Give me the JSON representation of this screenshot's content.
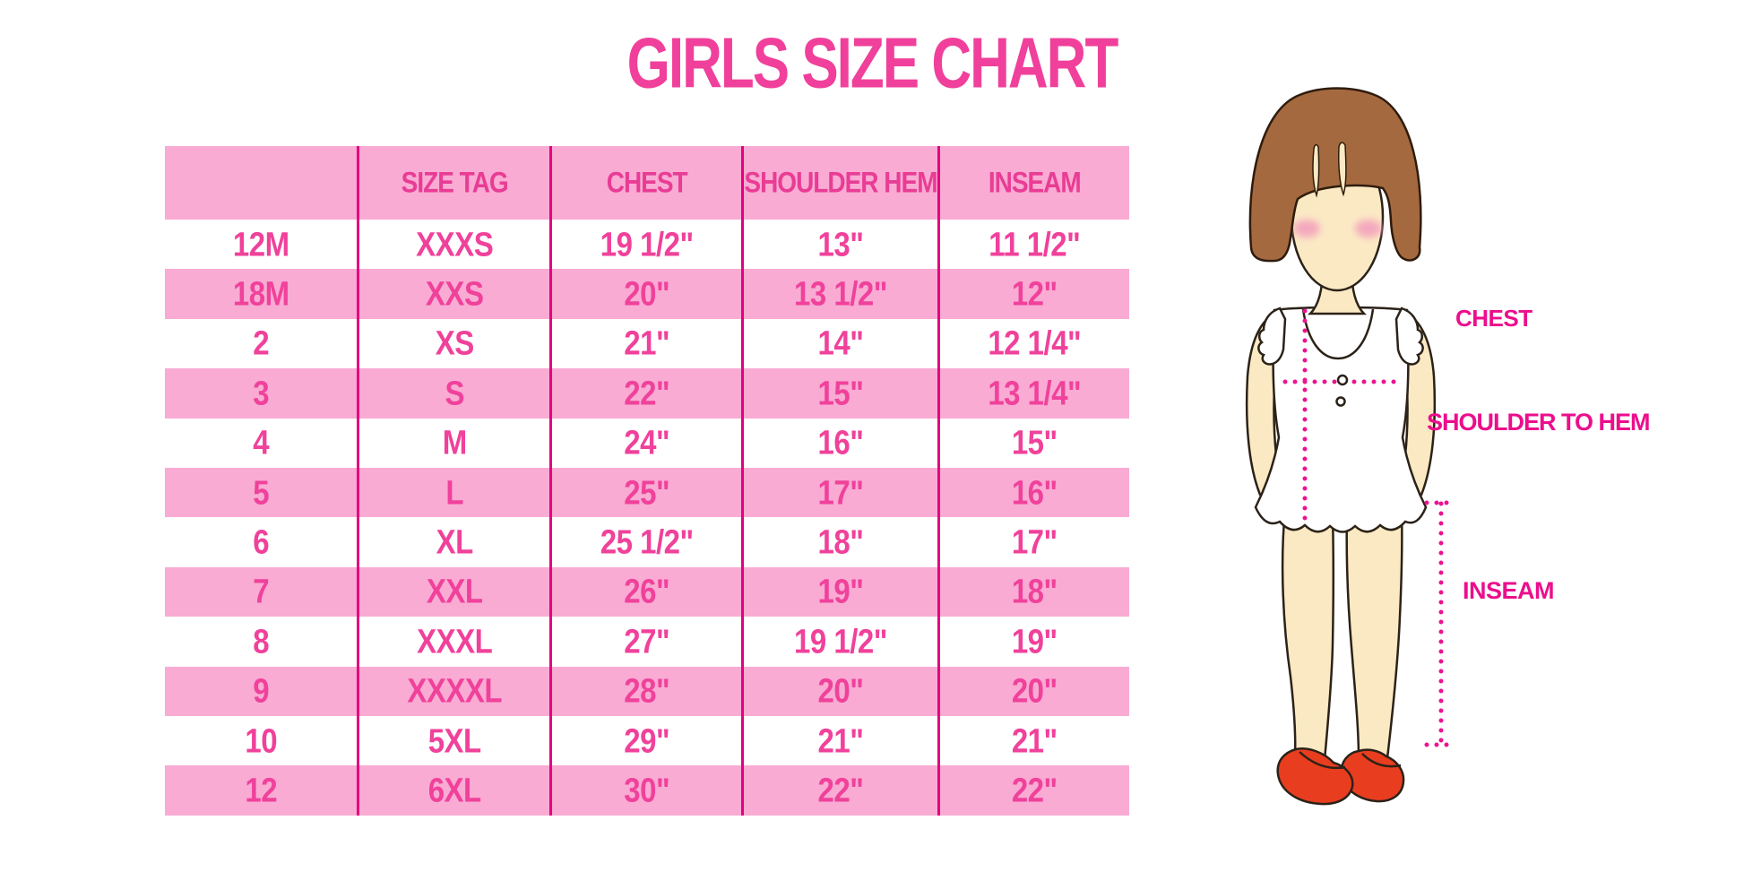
{
  "title": "GIRLS SIZE CHART",
  "chart_data": {
    "type": "table",
    "title": "GIRLS SIZE CHART",
    "columns": [
      "",
      "SIZE TAG",
      "CHEST",
      "SHOULDER HEM",
      "INSEAM"
    ],
    "rows": [
      [
        "12M",
        "XXXS",
        "19 1/2\"",
        "13\"",
        "11 1/2\""
      ],
      [
        "18M",
        "XXS",
        "20\"",
        "13 1/2\"",
        "12\""
      ],
      [
        "2",
        "XS",
        "21\"",
        "14\"",
        "12 1/4\""
      ],
      [
        "3",
        "S",
        "22\"",
        "15\"",
        "13 1/4\""
      ],
      [
        "4",
        "M",
        "24\"",
        "16\"",
        "15\""
      ],
      [
        "5",
        "L",
        "25\"",
        "17\"",
        "16\""
      ],
      [
        "6",
        "XL",
        "25 1/2\"",
        "18\"",
        "17\""
      ],
      [
        "7",
        "XXL",
        "26\"",
        "19\"",
        "18\""
      ],
      [
        "8",
        "XXXL",
        "27\"",
        "19 1/2\"",
        "19\""
      ],
      [
        "9",
        "XXXXL",
        "28\"",
        "20\"",
        "20\""
      ],
      [
        "10",
        "5XL",
        "29\"",
        "21\"",
        "21\""
      ],
      [
        "12",
        "6XL",
        "30\"",
        "22\"",
        "22\""
      ]
    ],
    "row_stripe_pattern": "white/pink alternating, header pink"
  },
  "diagram": {
    "labels": {
      "chest": "CHEST",
      "shoulder_to_hem": "SHOULDER TO HEM",
      "inseam": "INSEAM"
    }
  },
  "colors": {
    "title_pink": "#f0409b",
    "table_row_pink": "#f9abd3",
    "table_line_magenta": "#e5007f",
    "cell_text_pink": "#f0419b",
    "label_magenta": "#ec0e8c",
    "dotted_line_magenta": "#ec1390",
    "skin": "#fbe9c4",
    "hair_brown": "#a5693f",
    "shoe_red": "#e93d20",
    "background": "#ffffff"
  }
}
